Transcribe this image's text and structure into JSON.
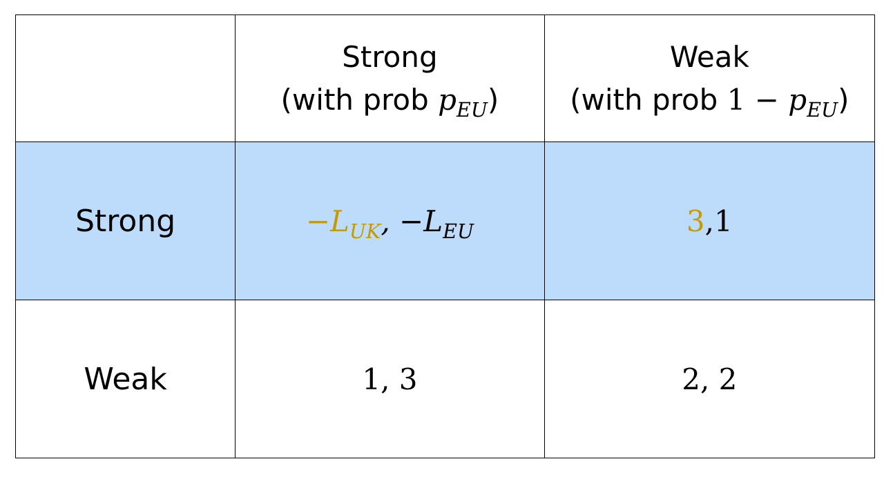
{
  "table": {
    "columns": [
      {
        "name": "Strong",
        "prob_prefix": "(with prob ",
        "prob_var": "p",
        "prob_sub": "EU",
        "prob_suffix": ")"
      },
      {
        "name": "Weak",
        "prob_prefix": "(with prob ",
        "prob_num": "1 − ",
        "prob_var": "p",
        "prob_sub": "EU",
        "prob_suffix": ")"
      }
    ],
    "rows": [
      {
        "label": "Strong",
        "highlighted": true,
        "cells": [
          {
            "uk_sign": "−",
            "uk_var": "L",
            "uk_sub": "UK",
            "sep": ", ",
            "eu_sign": "−",
            "eu_var": "L",
            "eu_sub": "EU"
          },
          {
            "uk": "3",
            "sep": ",",
            "eu": "1"
          }
        ]
      },
      {
        "label": "Weak",
        "highlighted": false,
        "cells": [
          {
            "uk": "1",
            "sep": ", ",
            "eu": "3"
          },
          {
            "uk": "2",
            "sep": ", ",
            "eu": "2"
          }
        ]
      }
    ]
  },
  "colors": {
    "highlight_row": "#bddcfc",
    "uk_payoff_accent": "#c49a00",
    "text": "#000000",
    "border": "#000000"
  }
}
